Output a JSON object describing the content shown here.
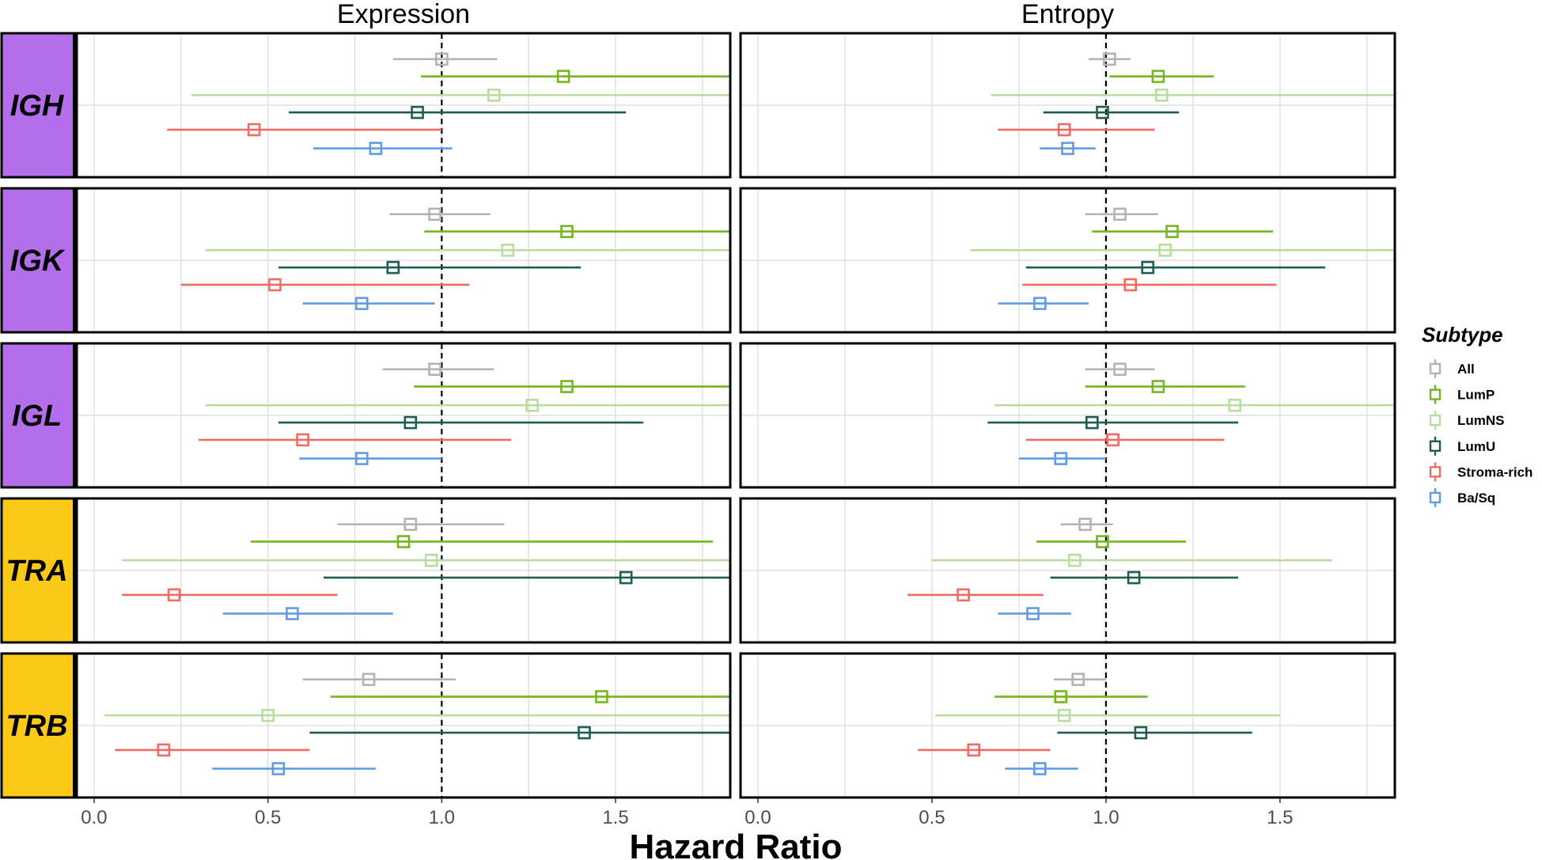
{
  "chart_data": {
    "type": "forest",
    "xlabel": "Hazard Ratio",
    "facet_columns": [
      "Expression",
      "Entropy"
    ],
    "facet_rows": [
      {
        "label": "IGH",
        "color": "#b46eec"
      },
      {
        "label": "IGK",
        "color": "#b46eec"
      },
      {
        "label": "IGL",
        "color": "#b46eec"
      },
      {
        "label": "TRA",
        "color": "#fbc918"
      },
      {
        "label": "TRB",
        "color": "#fbc918"
      }
    ],
    "xlim": [
      -0.05,
      1.83
    ],
    "xticks": [
      0.0,
      0.5,
      1.0,
      1.5
    ],
    "xtick_labels": [
      "0.0",
      "0.5",
      "1.0",
      "1.5"
    ],
    "reference_line": 1.0,
    "legend": {
      "title": "Subtype",
      "entries": [
        {
          "name": "All",
          "color": "#b3b3b3"
        },
        {
          "name": "LumP",
          "color": "#75b521"
        },
        {
          "name": "LumNS",
          "color": "#b9dd9e"
        },
        {
          "name": "LumU",
          "color": "#1d5e50"
        },
        {
          "name": "Stroma-rich",
          "color": "#f06b63"
        },
        {
          "name": "Ba/Sq",
          "color": "#5e9be9"
        }
      ]
    },
    "series": [
      "All",
      "LumP",
      "LumNS",
      "LumU",
      "Stroma-rich",
      "Ba/Sq"
    ],
    "panels": [
      {
        "column": "Expression",
        "row": "IGH",
        "points": [
          {
            "subtype": "All",
            "hr": 1.0,
            "lo": 0.86,
            "hi": 1.16
          },
          {
            "subtype": "LumP",
            "hr": 1.35,
            "lo": 0.94,
            "hi": 1.83
          },
          {
            "subtype": "LumNS",
            "hr": 1.15,
            "lo": 0.28,
            "hi": 1.83
          },
          {
            "subtype": "LumU",
            "hr": 0.93,
            "lo": 0.56,
            "hi": 1.53
          },
          {
            "subtype": "Stroma-rich",
            "hr": 0.46,
            "lo": 0.21,
            "hi": 1.0
          },
          {
            "subtype": "Ba/Sq",
            "hr": 0.81,
            "lo": 0.63,
            "hi": 1.03
          }
        ]
      },
      {
        "column": "Entropy",
        "row": "IGH",
        "points": [
          {
            "subtype": "All",
            "hr": 1.01,
            "lo": 0.95,
            "hi": 1.07
          },
          {
            "subtype": "LumP",
            "hr": 1.15,
            "lo": 1.01,
            "hi": 1.31
          },
          {
            "subtype": "LumNS",
            "hr": 1.16,
            "lo": 0.67,
            "hi": 1.83
          },
          {
            "subtype": "LumU",
            "hr": 0.99,
            "lo": 0.82,
            "hi": 1.21
          },
          {
            "subtype": "Stroma-rich",
            "hr": 0.88,
            "lo": 0.69,
            "hi": 1.14
          },
          {
            "subtype": "Ba/Sq",
            "hr": 0.89,
            "lo": 0.81,
            "hi": 0.97
          }
        ]
      },
      {
        "column": "Expression",
        "row": "IGK",
        "points": [
          {
            "subtype": "All",
            "hr": 0.98,
            "lo": 0.85,
            "hi": 1.14
          },
          {
            "subtype": "LumP",
            "hr": 1.36,
            "lo": 0.95,
            "hi": 1.83
          },
          {
            "subtype": "LumNS",
            "hr": 1.19,
            "lo": 0.32,
            "hi": 1.83
          },
          {
            "subtype": "LumU",
            "hr": 0.86,
            "lo": 0.53,
            "hi": 1.4
          },
          {
            "subtype": "Stroma-rich",
            "hr": 0.52,
            "lo": 0.25,
            "hi": 1.08
          },
          {
            "subtype": "Ba/Sq",
            "hr": 0.77,
            "lo": 0.6,
            "hi": 0.98
          }
        ]
      },
      {
        "column": "Entropy",
        "row": "IGK",
        "points": [
          {
            "subtype": "All",
            "hr": 1.04,
            "lo": 0.94,
            "hi": 1.15
          },
          {
            "subtype": "LumP",
            "hr": 1.19,
            "lo": 0.96,
            "hi": 1.48
          },
          {
            "subtype": "LumNS",
            "hr": 1.17,
            "lo": 0.61,
            "hi": 1.83
          },
          {
            "subtype": "LumU",
            "hr": 1.12,
            "lo": 0.77,
            "hi": 1.63
          },
          {
            "subtype": "Stroma-rich",
            "hr": 1.07,
            "lo": 0.76,
            "hi": 1.49
          },
          {
            "subtype": "Ba/Sq",
            "hr": 0.81,
            "lo": 0.69,
            "hi": 0.95
          }
        ]
      },
      {
        "column": "Expression",
        "row": "IGL",
        "points": [
          {
            "subtype": "All",
            "hr": 0.98,
            "lo": 0.83,
            "hi": 1.15
          },
          {
            "subtype": "LumP",
            "hr": 1.36,
            "lo": 0.92,
            "hi": 1.83
          },
          {
            "subtype": "LumNS",
            "hr": 1.26,
            "lo": 0.32,
            "hi": 1.83
          },
          {
            "subtype": "LumU",
            "hr": 0.91,
            "lo": 0.53,
            "hi": 1.58
          },
          {
            "subtype": "Stroma-rich",
            "hr": 0.6,
            "lo": 0.3,
            "hi": 1.2
          },
          {
            "subtype": "Ba/Sq",
            "hr": 0.77,
            "lo": 0.59,
            "hi": 1.0
          }
        ]
      },
      {
        "column": "Entropy",
        "row": "IGL",
        "points": [
          {
            "subtype": "All",
            "hr": 1.04,
            "lo": 0.94,
            "hi": 1.14
          },
          {
            "subtype": "LumP",
            "hr": 1.15,
            "lo": 0.94,
            "hi": 1.4
          },
          {
            "subtype": "LumNS",
            "hr": 1.37,
            "lo": 0.68,
            "hi": 1.83
          },
          {
            "subtype": "LumU",
            "hr": 0.96,
            "lo": 0.66,
            "hi": 1.38
          },
          {
            "subtype": "Stroma-rich",
            "hr": 1.02,
            "lo": 0.77,
            "hi": 1.34
          },
          {
            "subtype": "Ba/Sq",
            "hr": 0.87,
            "lo": 0.75,
            "hi": 1.0
          }
        ]
      },
      {
        "column": "Expression",
        "row": "TRA",
        "points": [
          {
            "subtype": "All",
            "hr": 0.91,
            "lo": 0.7,
            "hi": 1.18
          },
          {
            "subtype": "LumP",
            "hr": 0.89,
            "lo": 0.45,
            "hi": 1.78
          },
          {
            "subtype": "LumNS",
            "hr": 0.97,
            "lo": 0.08,
            "hi": 1.83
          },
          {
            "subtype": "LumU",
            "hr": 1.53,
            "lo": 0.66,
            "hi": 1.83
          },
          {
            "subtype": "Stroma-rich",
            "hr": 0.23,
            "lo": 0.08,
            "hi": 0.7
          },
          {
            "subtype": "Ba/Sq",
            "hr": 0.57,
            "lo": 0.37,
            "hi": 0.86
          }
        ]
      },
      {
        "column": "Entropy",
        "row": "TRA",
        "points": [
          {
            "subtype": "All",
            "hr": 0.94,
            "lo": 0.87,
            "hi": 1.02
          },
          {
            "subtype": "LumP",
            "hr": 0.99,
            "lo": 0.8,
            "hi": 1.23
          },
          {
            "subtype": "LumNS",
            "hr": 0.91,
            "lo": 0.5,
            "hi": 1.65
          },
          {
            "subtype": "LumU",
            "hr": 1.08,
            "lo": 0.84,
            "hi": 1.38
          },
          {
            "subtype": "Stroma-rich",
            "hr": 0.59,
            "lo": 0.43,
            "hi": 0.82
          },
          {
            "subtype": "Ba/Sq",
            "hr": 0.79,
            "lo": 0.69,
            "hi": 0.9
          }
        ]
      },
      {
        "column": "Expression",
        "row": "TRB",
        "points": [
          {
            "subtype": "All",
            "hr": 0.79,
            "lo": 0.6,
            "hi": 1.04
          },
          {
            "subtype": "LumP",
            "hr": 1.46,
            "lo": 0.68,
            "hi": 1.83
          },
          {
            "subtype": "LumNS",
            "hr": 0.5,
            "lo": 0.03,
            "hi": 1.83
          },
          {
            "subtype": "LumU",
            "hr": 1.41,
            "lo": 0.62,
            "hi": 1.83
          },
          {
            "subtype": "Stroma-rich",
            "hr": 0.2,
            "lo": 0.06,
            "hi": 0.62
          },
          {
            "subtype": "Ba/Sq",
            "hr": 0.53,
            "lo": 0.34,
            "hi": 0.81
          }
        ]
      },
      {
        "column": "Entropy",
        "row": "TRB",
        "points": [
          {
            "subtype": "All",
            "hr": 0.92,
            "lo": 0.85,
            "hi": 1.0
          },
          {
            "subtype": "LumP",
            "hr": 0.87,
            "lo": 0.68,
            "hi": 1.12
          },
          {
            "subtype": "LumNS",
            "hr": 0.88,
            "lo": 0.51,
            "hi": 1.5
          },
          {
            "subtype": "LumU",
            "hr": 1.1,
            "lo": 0.86,
            "hi": 1.42
          },
          {
            "subtype": "Stroma-rich",
            "hr": 0.62,
            "lo": 0.46,
            "hi": 0.84
          },
          {
            "subtype": "Ba/Sq",
            "hr": 0.81,
            "lo": 0.71,
            "hi": 0.92
          }
        ]
      }
    ]
  }
}
